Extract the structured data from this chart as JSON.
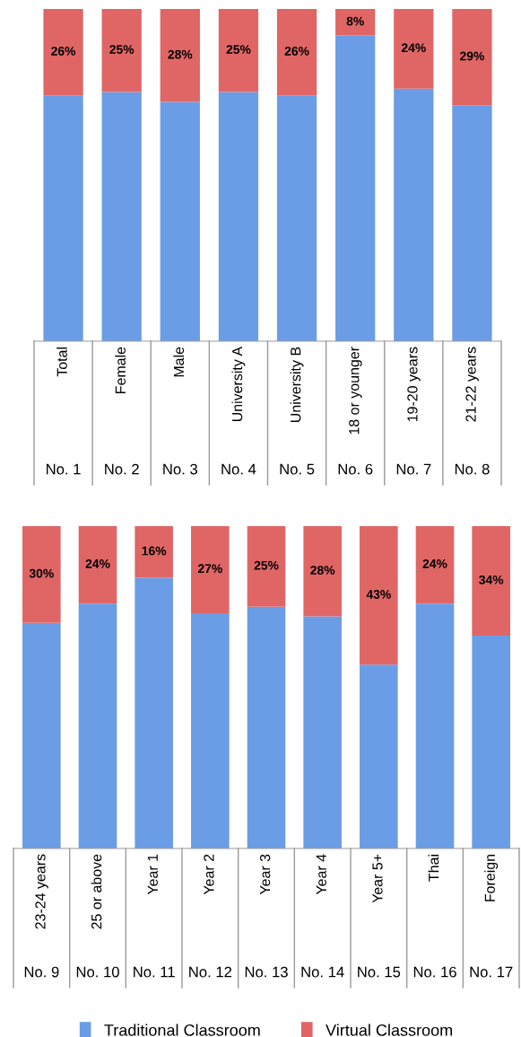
{
  "chart_data": [
    {
      "type": "bar",
      "stacked": true,
      "categories": [
        "Total",
        "Female",
        "Male",
        "University A",
        "University B",
        "18 or younger",
        "19-20 years",
        "21-22 years"
      ],
      "annotations": [
        "No. 1",
        "No. 2",
        "No. 3",
        "No. 4",
        "No. 5",
        "No. 6",
        "No. 7",
        "No. 8"
      ],
      "series": [
        {
          "color": "#6a9de6",
          "values": [
            74,
            75,
            72,
            75,
            74,
            92,
            76,
            71
          ]
        },
        {
          "color": "#e06666",
          "values": [
            26,
            25,
            28,
            25,
            26,
            8,
            24,
            29
          ],
          "value_labels": [
            "26%",
            "25%",
            "28%",
            "25%",
            "26%",
            "8%",
            "24%",
            "29%"
          ]
        }
      ],
      "ylim": [
        0,
        100
      ],
      "tick_labels": "x",
      "legend": false
    },
    {
      "type": "bar",
      "stacked": true,
      "categories": [
        "23-24 years",
        "25 or above",
        "Year 1",
        "Year 2",
        "Year 3",
        "Year 4",
        "Year 5+",
        "Thai",
        "Foreign"
      ],
      "annotations": [
        "No. 9",
        "No. 10",
        "No. 11",
        "No. 12",
        "No. 13",
        "No. 14",
        "No. 15",
        "No. 16",
        "No. 17"
      ],
      "series": [
        {
          "name": "Traditional Classroom",
          "color": "#6a9de6",
          "values": [
            70,
            76,
            84,
            73,
            75,
            72,
            57,
            76,
            66
          ]
        },
        {
          "name": "Virtual Classroom",
          "color": "#e06666",
          "values": [
            30,
            24,
            16,
            27,
            25,
            28,
            43,
            24,
            34
          ],
          "value_labels": [
            "30%",
            "24%",
            "16%",
            "27%",
            "25%",
            "28%",
            "43%",
            "24%",
            "34%"
          ]
        }
      ],
      "ylim": [
        0,
        100
      ],
      "tick_labels": "x",
      "legend": "bottom"
    }
  ]
}
